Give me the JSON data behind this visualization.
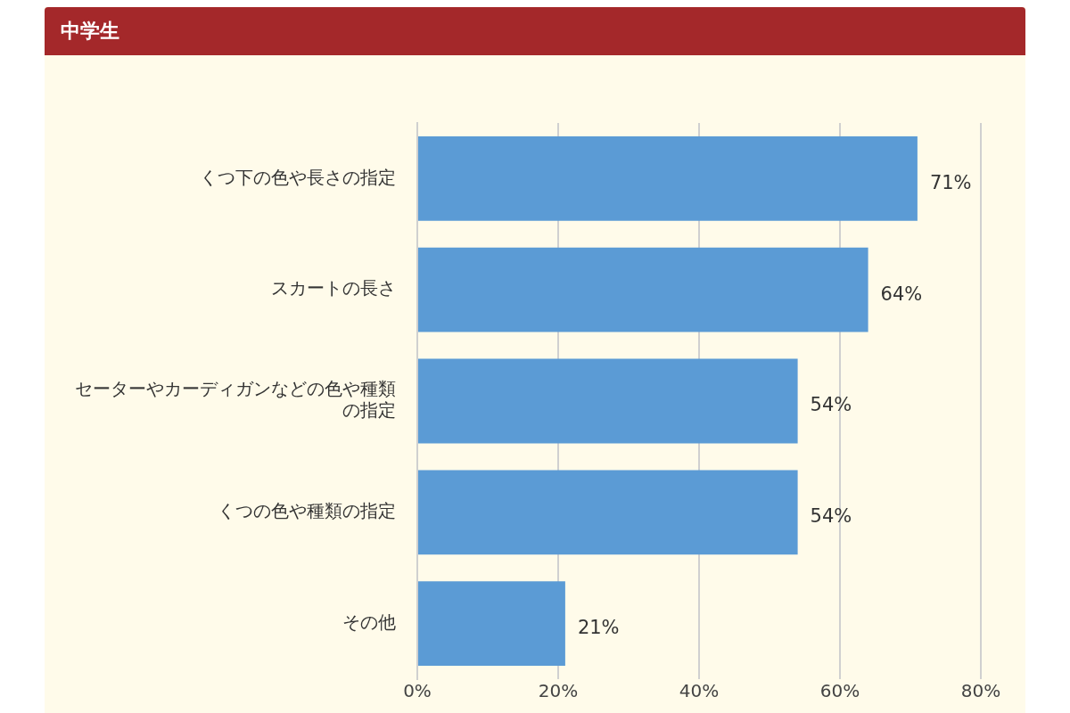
{
  "chart_data": {
    "type": "bar",
    "orientation": "horizontal",
    "title": "中学生",
    "categories": [
      "くつ下の色や長さの指定",
      "スカートの長さ",
      "セーターやカーディガンなどの色や種類の指定",
      "くつの色や種類の指定",
      "その他"
    ],
    "values": [
      71,
      64,
      54,
      54,
      21
    ],
    "color": "#5b9bd5",
    "value_labels": [
      "71%",
      "64%",
      "54%",
      "54%",
      "21%"
    ],
    "xlim": [
      0,
      80
    ],
    "xticks": [
      {
        "value": 0,
        "label": "0%"
      },
      {
        "value": 20,
        "label": "20%"
      },
      {
        "value": 40,
        "label": "40%"
      },
      {
        "value": 60,
        "label": "60%"
      },
      {
        "value": 80,
        "label": "80%"
      }
    ],
    "grid": "x"
  }
}
